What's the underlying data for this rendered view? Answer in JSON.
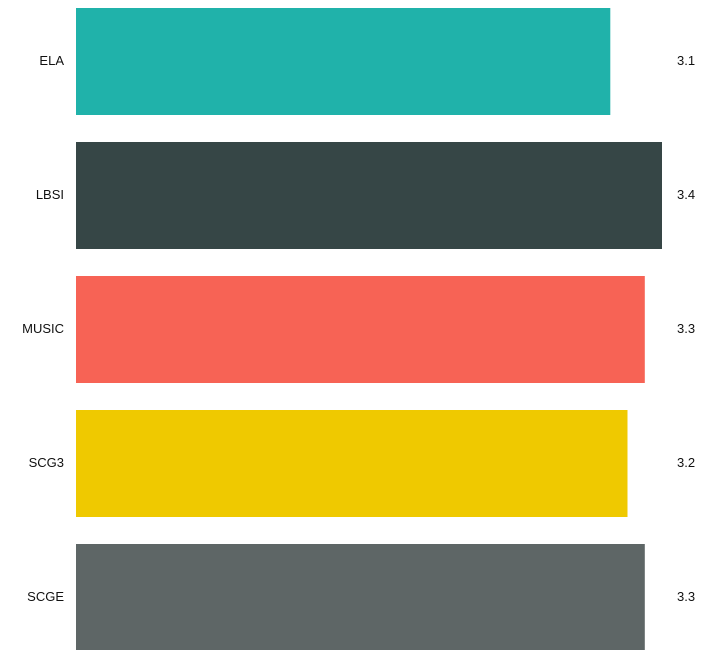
{
  "chart_data": {
    "type": "bar",
    "orientation": "horizontal",
    "categories": [
      "ELA",
      "LBSI",
      "MUSIC",
      "SCG3",
      "SCGE"
    ],
    "values": [
      3.1,
      3.4,
      3.3,
      3.2,
      3.3
    ],
    "value_labels": [
      "3.1",
      "3.4",
      "3.3",
      "3.2",
      "3.3"
    ],
    "colors": [
      "#20B2AA",
      "#364646",
      "#F76355",
      "#EFC900",
      "#5E6666"
    ],
    "title": "",
    "xlabel": "",
    "ylabel": "",
    "grid": false,
    "legend": "none"
  }
}
